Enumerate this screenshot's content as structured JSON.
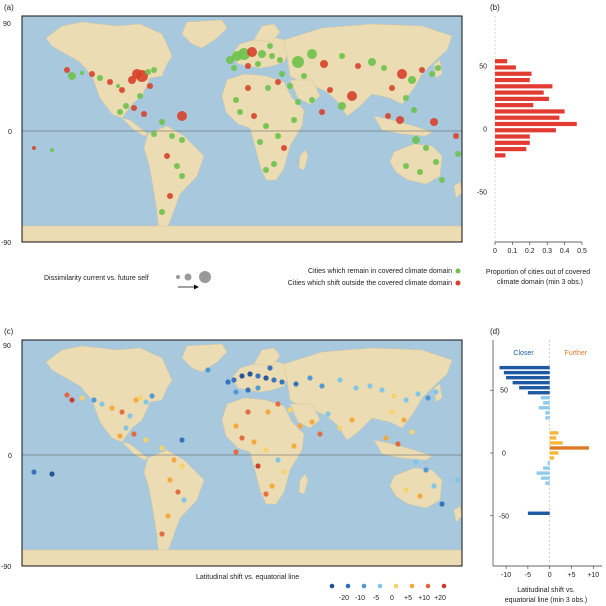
{
  "panels": {
    "a": "(a)",
    "b": "(b)",
    "c": "(c)",
    "d": "(d)"
  },
  "map_axis_labels": {
    "top": "90",
    "zero": "0",
    "bottom": "-90"
  },
  "legend_a": {
    "size_text": "Dissimilarity current vs. future self",
    "remain_text": "Cities which remain in covered climate domain",
    "shift_text": "Cities which shift outside the covered climate domain",
    "remain_color": "#6cc24a",
    "shift_color": "#d8412b"
  },
  "legend_c": {
    "title": "Latitudinal shift vs. equatorial line",
    "ticks": [
      "-20",
      "-10",
      "-5",
      "0",
      "+5",
      "+10",
      "+20"
    ],
    "colors": [
      "#1f4f96",
      "#2f6fb8",
      "#4c97d4",
      "#7fc4e8",
      "#f6d26c",
      "#f3a63a",
      "#e0683a",
      "#c63a2a"
    ]
  },
  "colors": {
    "ocean": "#a8c9dd",
    "land": "#ecdcb4",
    "bar_b": "#e23b32",
    "closer": "#1f59a3",
    "closer_light": "#8fcbea",
    "further": "#e07a27",
    "further_light": "#f5b73a"
  },
  "chart_data": [
    {
      "type": "bar",
      "panel": "b",
      "orientation": "horizontal",
      "xlabel": "Proportion of cities out of covered climate domain (min 3 obs.)",
      "xlim": [
        0,
        0.5
      ],
      "xticks": [
        "0",
        "0.1",
        "0.2",
        "0.3",
        "0.4",
        "0.5"
      ],
      "ylim": [
        -90,
        90
      ],
      "yticks": [
        "50",
        "0",
        "-50"
      ],
      "latitudes": [
        54,
        49,
        44,
        39,
        34,
        29,
        24,
        19,
        14,
        9,
        4,
        -1,
        -6,
        -11,
        -16,
        -21
      ],
      "values": [
        0.07,
        0.12,
        0.21,
        0.2,
        0.33,
        0.28,
        0.31,
        0.22,
        0.4,
        0.37,
        0.47,
        0.35,
        0.2,
        0.2,
        0.18,
        0.06
      ]
    },
    {
      "type": "bar",
      "panel": "d",
      "orientation": "horizontal",
      "xlabel": "Latitudinal shift vs. equatorial line (min 3 obs.)",
      "left_label": "Closer",
      "right_label": "Further",
      "xlim": [
        -13,
        12
      ],
      "xticks": [
        "-10",
        "-5",
        "0",
        "+5",
        "+10"
      ],
      "ylim": [
        -90,
        90
      ],
      "yticks": [
        "50",
        "0",
        "-50"
      ],
      "latitudes": [
        68,
        64,
        60,
        56,
        52,
        48,
        44,
        40,
        36,
        32,
        28,
        24,
        20,
        16,
        12,
        8,
        4,
        0,
        -4,
        -8,
        -12,
        -16,
        -20,
        -24,
        -28,
        -32,
        -36,
        -40,
        -44,
        -48
      ],
      "values": [
        -11.5,
        -10.5,
        -10,
        -8.5,
        -7,
        -5,
        -2,
        -1.5,
        -2.5,
        -1,
        -1,
        0,
        0,
        2,
        1.5,
        3,
        9,
        2,
        1,
        -0.5,
        -1.5,
        -3,
        -2,
        -1,
        0,
        0,
        0,
        0,
        0,
        -5
      ]
    }
  ]
}
